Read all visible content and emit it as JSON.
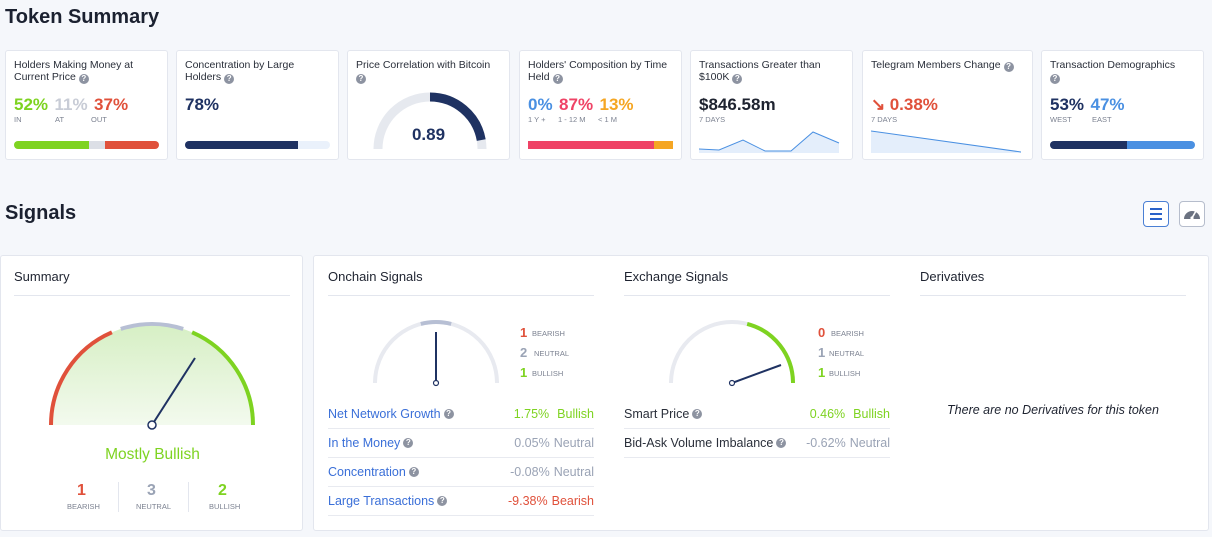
{
  "token_summary": {
    "title": "Token Summary",
    "cards": {
      "holders_money": {
        "title": "Holders Making Money at Current Price",
        "in": "52%",
        "at": "11%",
        "out": "37%",
        "in_label": "IN",
        "at_label": "AT",
        "out_label": "OUT",
        "in_frac": 0.52,
        "at_frac": 0.11,
        "out_frac": 0.37
      },
      "concentration": {
        "title": "Concentration by Large Holders",
        "value": "78%",
        "frac": 0.78
      },
      "price_correlation": {
        "title": "Price Correlation with Bitcoin",
        "value": "0.89",
        "frac": 0.89
      },
      "composition": {
        "title": "Holders' Composition by Time Held",
        "v1": "0%",
        "v2": "87%",
        "v3": "13%",
        "l1": "1 Y +",
        "l2": "1 - 12 M",
        "l3": "< 1 M",
        "frac2": 0.87,
        "frac3": 0.13
      },
      "transactions": {
        "title": "Transactions Greater than $100K",
        "value": "$846.58m",
        "period": "7 DAYS"
      },
      "telegram": {
        "title": "Telegram Members Change",
        "arrow": "↘",
        "value": "0.38%",
        "period": "7 DAYS"
      },
      "demographics": {
        "title": "Transaction Demographics",
        "west": "53%",
        "east": "47%",
        "west_label": "WEST",
        "east_label": "EAST",
        "west_frac": 0.53
      }
    }
  },
  "signals": {
    "title": "Signals",
    "summary": {
      "title": "Summary",
      "verdict": "Mostly Bullish",
      "bearish": "1",
      "neutral": "3",
      "bullish": "2",
      "bearish_label": "BEARISH",
      "neutral_label": "NEUTRAL",
      "bullish_label": "BULLISH"
    },
    "onchain": {
      "title": "Onchain Signals",
      "bearish": "1",
      "neutral": "2",
      "bullish": "1",
      "bearish_label": "BEARISH",
      "neutral_label": "NEUTRAL",
      "bullish_label": "BULLISH",
      "rows": [
        {
          "label": "Net Network Growth",
          "value": "1.75%",
          "status": "Bullish"
        },
        {
          "label": "In the Money",
          "value": "0.05%",
          "status": "Neutral"
        },
        {
          "label": "Concentration",
          "value": "-0.08%",
          "status": "Neutral"
        },
        {
          "label": "Large Transactions",
          "value": "-9.38%",
          "status": "Bearish"
        }
      ]
    },
    "exchange": {
      "title": "Exchange Signals",
      "bearish": "0",
      "neutral": "1",
      "bullish": "1",
      "bearish_label": "BEARISH",
      "neutral_label": "NEUTRAL",
      "bullish_label": "BULLISH",
      "rows": [
        {
          "label": "Smart Price",
          "value": "0.46%",
          "status": "Bullish"
        },
        {
          "label": "Bid-Ask Volume Imbalance",
          "value": "-0.62%",
          "status": "Neutral"
        }
      ]
    },
    "derivatives": {
      "title": "Derivatives",
      "empty_text": "There are no Derivatives for this token"
    }
  },
  "icons": {
    "list_view": "list-icon",
    "gauge_view": "gauge-icon",
    "help": "question-icon"
  },
  "colors": {
    "bullish": "#7ed321",
    "bearish": "#e0513b",
    "neutral": "#9aa3b5",
    "navy": "#1f3262",
    "blue_link": "#3a6fd8",
    "pink": "#ef4366",
    "orange": "#f5a623",
    "light_blue": "#4a90e2"
  }
}
